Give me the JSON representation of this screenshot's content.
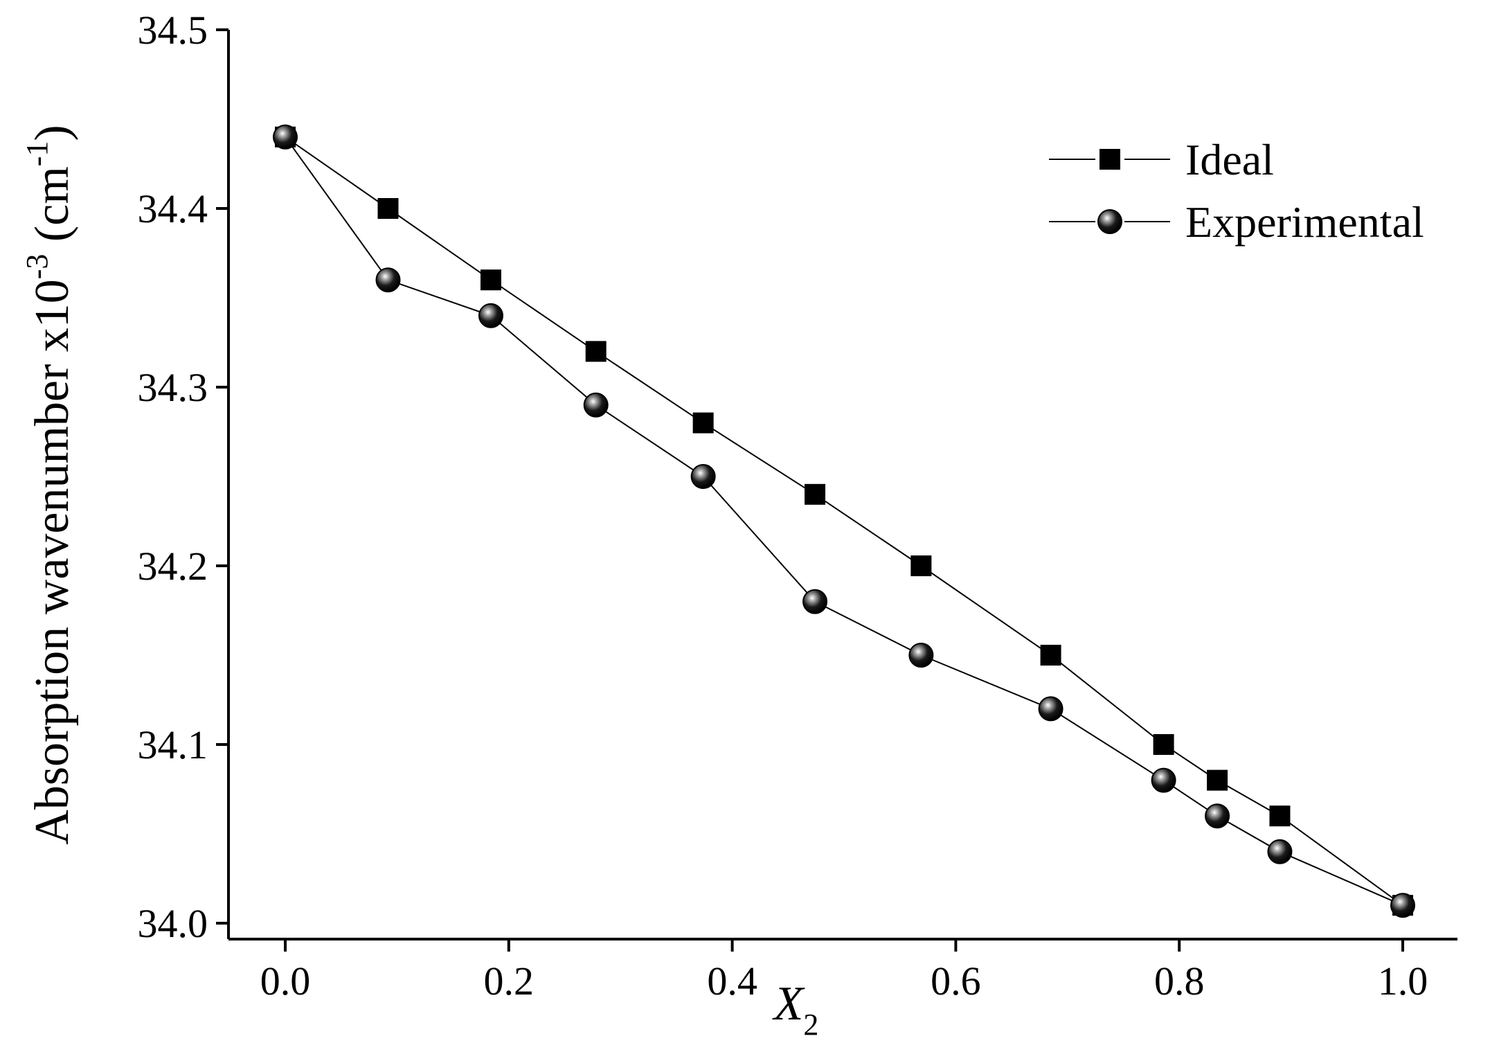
{
  "chart_data": {
    "type": "line",
    "xlabel": {
      "main": "X",
      "sub": "2"
    },
    "ylabel": {
      "main": "Absorption wavenumber x10",
      "sup1": "-3",
      "mid": " (cm",
      "sup2": "-1",
      "end": ")"
    },
    "xlim": [
      -0.05,
      1.05
    ],
    "ylim": [
      33.99,
      34.5
    ],
    "xticks": [
      "0.0",
      "0.2",
      "0.4",
      "0.6",
      "0.8",
      "1.0"
    ],
    "xtick_values": [
      0.0,
      0.2,
      0.4,
      0.6,
      0.8,
      1.0
    ],
    "yticks": [
      "34.0",
      "34.1",
      "34.2",
      "34.3",
      "34.4",
      "34.5"
    ],
    "ytick_values": [
      34.0,
      34.1,
      34.2,
      34.3,
      34.4,
      34.5
    ],
    "legend_position": "top-right",
    "series": [
      {
        "name": "Ideal",
        "marker": "square",
        "x": [
          0.0,
          0.092,
          0.184,
          0.278,
          0.374,
          0.474,
          0.569,
          0.685,
          0.786,
          0.834,
          0.89,
          1.0
        ],
        "y": [
          34.44,
          34.4,
          34.36,
          34.32,
          34.28,
          34.24,
          34.2,
          34.15,
          34.1,
          34.08,
          34.06,
          34.01
        ]
      },
      {
        "name": "Experimental",
        "marker": "sphere",
        "x": [
          0.0,
          0.092,
          0.184,
          0.278,
          0.374,
          0.474,
          0.569,
          0.685,
          0.786,
          0.834,
          0.89,
          1.0
        ],
        "y": [
          34.44,
          34.36,
          34.34,
          34.29,
          34.25,
          34.18,
          34.15,
          34.12,
          34.08,
          34.06,
          34.04,
          34.01
        ]
      }
    ]
  }
}
